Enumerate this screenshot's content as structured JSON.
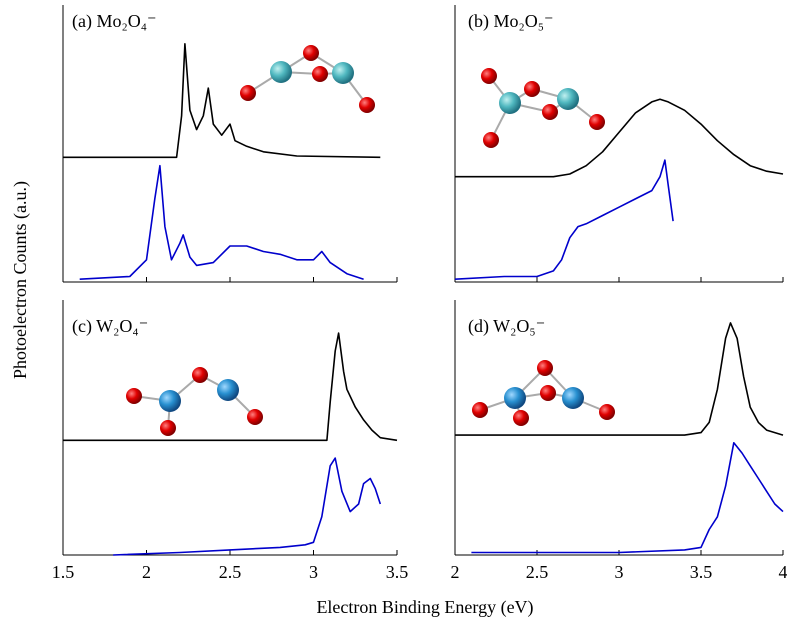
{
  "figure": {
    "x_label": "Electron Binding Energy (eV)",
    "y_label": "Photoelectron Counts (a.u.)"
  },
  "chart_data": [
    {
      "type": "line",
      "title": "(a) Mo₂O₄⁻",
      "xlim": [
        1.5,
        3.5
      ],
      "xticks": [
        1.5,
        2,
        2.5,
        3,
        3.5
      ],
      "ylim": [
        0,
        1
      ],
      "series": [
        {
          "color": "#000000",
          "x": [
            1.5,
            2.18,
            2.21,
            2.23,
            2.26,
            2.3,
            2.34,
            2.37,
            2.4,
            2.45,
            2.5,
            2.53,
            2.6,
            2.7,
            2.9,
            3.4
          ],
          "values": [
            0.45,
            0.45,
            0.6,
            0.86,
            0.62,
            0.55,
            0.6,
            0.7,
            0.57,
            0.53,
            0.57,
            0.51,
            0.49,
            0.47,
            0.455,
            0.45
          ]
        },
        {
          "color": "#0000cc",
          "x": [
            1.6,
            1.9,
            2.0,
            2.05,
            2.08,
            2.11,
            2.15,
            2.2,
            2.22,
            2.26,
            2.3,
            2.4,
            2.5,
            2.6,
            2.7,
            2.8,
            2.9,
            3.0,
            3.05,
            3.1,
            3.2,
            3.3
          ],
          "values": [
            0.01,
            0.02,
            0.08,
            0.3,
            0.42,
            0.2,
            0.08,
            0.14,
            0.17,
            0.09,
            0.06,
            0.07,
            0.13,
            0.13,
            0.11,
            0.1,
            0.08,
            0.08,
            0.11,
            0.07,
            0.03,
            0.01
          ]
        }
      ]
    },
    {
      "type": "line",
      "title": "(b) Mo₂O₅⁻",
      "xlim": [
        2,
        4
      ],
      "xticks": [
        2,
        2.5,
        3,
        3.5,
        4
      ],
      "ylim": [
        0,
        1
      ],
      "series": [
        {
          "color": "#000000",
          "x": [
            2,
            2.6,
            2.7,
            2.8,
            2.9,
            3.0,
            3.1,
            3.2,
            3.25,
            3.3,
            3.4,
            3.5,
            3.6,
            3.7,
            3.8,
            3.9,
            4.0
          ],
          "values": [
            0.38,
            0.38,
            0.39,
            0.42,
            0.47,
            0.54,
            0.61,
            0.65,
            0.66,
            0.65,
            0.62,
            0.57,
            0.51,
            0.46,
            0.42,
            0.4,
            0.39
          ]
        },
        {
          "color": "#0000cc",
          "x": [
            2.0,
            2.3,
            2.5,
            2.6,
            2.65,
            2.7,
            2.75,
            2.8,
            2.9,
            3.0,
            3.1,
            3.2,
            3.25,
            3.28,
            3.3,
            3.33
          ],
          "values": [
            0.01,
            0.02,
            0.02,
            0.04,
            0.08,
            0.16,
            0.2,
            0.21,
            0.24,
            0.27,
            0.3,
            0.33,
            0.38,
            0.44,
            0.35,
            0.22
          ]
        }
      ]
    },
    {
      "type": "line",
      "title": "(c) W₂O₄⁻",
      "xlim": [
        1.5,
        3.5
      ],
      "xticks": [
        1.5,
        2,
        2.5,
        3,
        3.5
      ],
      "ylim": [
        0,
        1
      ],
      "series": [
        {
          "color": "#000000",
          "x": [
            1.5,
            3.08,
            3.1,
            3.13,
            3.15,
            3.18,
            3.2,
            3.25,
            3.3,
            3.35,
            3.4,
            3.5
          ],
          "values": [
            0.45,
            0.45,
            0.6,
            0.8,
            0.87,
            0.72,
            0.65,
            0.58,
            0.53,
            0.49,
            0.46,
            0.45
          ]
        },
        {
          "color": "#0000cc",
          "x": [
            1.8,
            2.2,
            2.5,
            2.8,
            2.95,
            3.0,
            3.05,
            3.1,
            3.13,
            3.17,
            3.22,
            3.27,
            3.3,
            3.34,
            3.37,
            3.4
          ],
          "values": [
            0.0,
            0.01,
            0.02,
            0.03,
            0.04,
            0.05,
            0.15,
            0.35,
            0.38,
            0.25,
            0.17,
            0.2,
            0.28,
            0.3,
            0.26,
            0.2
          ]
        }
      ]
    },
    {
      "type": "line",
      "title": "(d) W₂O₅⁻",
      "xlim": [
        2,
        4
      ],
      "xticks": [
        2,
        2.5,
        3,
        3.5,
        4
      ],
      "ylim": [
        0,
        1
      ],
      "series": [
        {
          "color": "#000000",
          "x": [
            2,
            3.4,
            3.5,
            3.55,
            3.6,
            3.65,
            3.68,
            3.72,
            3.76,
            3.8,
            3.85,
            3.9,
            4.0
          ],
          "values": [
            0.47,
            0.47,
            0.48,
            0.52,
            0.65,
            0.85,
            0.91,
            0.85,
            0.7,
            0.58,
            0.52,
            0.49,
            0.47
          ]
        },
        {
          "color": "#0000cc",
          "x": [
            2.1,
            2.5,
            3.0,
            3.4,
            3.5,
            3.55,
            3.6,
            3.65,
            3.7,
            3.75,
            3.8,
            3.85,
            3.9,
            3.95,
            4.0
          ],
          "values": [
            0.01,
            0.01,
            0.01,
            0.02,
            0.03,
            0.1,
            0.15,
            0.27,
            0.44,
            0.4,
            0.35,
            0.3,
            0.25,
            0.2,
            0.17
          ]
        }
      ]
    }
  ]
}
